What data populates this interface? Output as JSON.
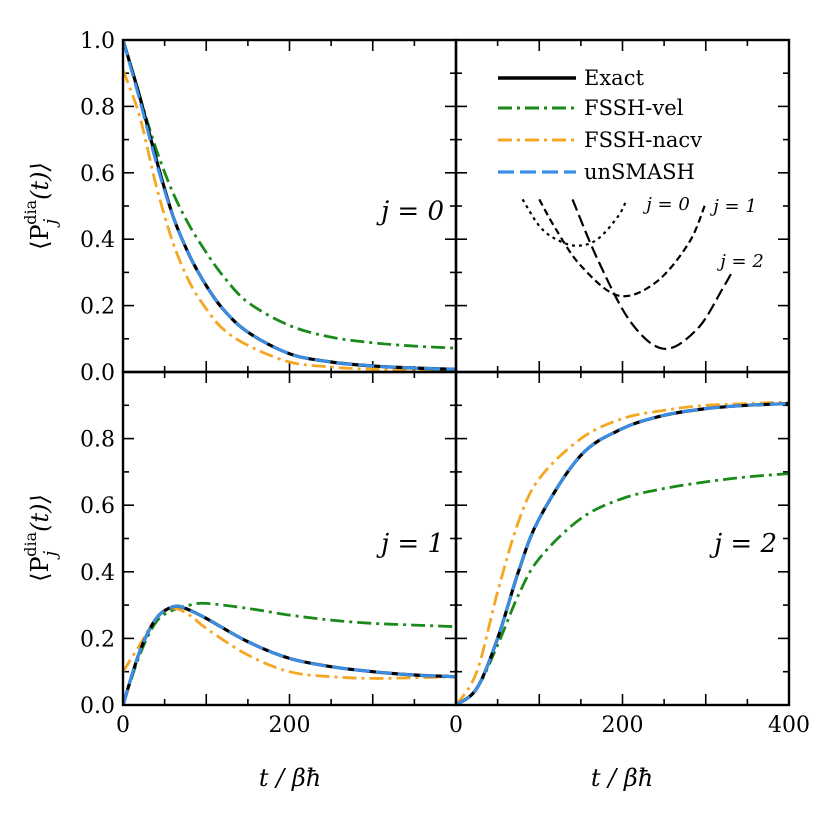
{
  "colors": {
    "exact": "#000000",
    "fssh_vel": "#1a8a1a",
    "fssh_nacv": "#f5a623",
    "unsmash": "#3a8ee6"
  },
  "labels": {
    "xlabel": "t / βħ",
    "ylabel_main": "⟨P",
    "ylabel_sub": "j",
    "ylabel_sup": "dia",
    "ylabel_tail": "(t)⟩"
  },
  "legend": [
    {
      "key": "exact",
      "label": "Exact"
    },
    {
      "key": "fssh_vel",
      "label": "FSSH-vel"
    },
    {
      "key": "fssh_nacv",
      "label": "FSSH-nacv"
    },
    {
      "key": "unsmash",
      "label": "unSMASH"
    }
  ],
  "inset_labels": [
    "j = 0",
    "j = 1",
    "j = 2"
  ],
  "chart_data": [
    {
      "type": "line",
      "panel": "top-left",
      "label": "j = 0",
      "xlim": [
        0,
        400
      ],
      "ylim": [
        0,
        1
      ],
      "xticks": [],
      "yticks": [
        "0.0",
        "0.2",
        "0.4",
        "0.6",
        "0.8",
        "1.0"
      ],
      "series": [
        {
          "name": "Exact",
          "x": [
            0,
            20,
            40,
            60,
            80,
            100,
            120,
            150,
            200,
            250,
            300,
            350,
            400
          ],
          "y": [
            1.0,
            0.83,
            0.64,
            0.47,
            0.35,
            0.26,
            0.19,
            0.12,
            0.055,
            0.03,
            0.018,
            0.012,
            0.008
          ]
        },
        {
          "name": "FSSH-vel",
          "x": [
            0,
            20,
            40,
            60,
            80,
            100,
            120,
            150,
            200,
            250,
            300,
            350,
            400
          ],
          "y": [
            1.0,
            0.83,
            0.67,
            0.54,
            0.44,
            0.36,
            0.29,
            0.21,
            0.14,
            0.105,
            0.088,
            0.078,
            0.072
          ]
        },
        {
          "name": "FSSH-nacv",
          "x": [
            0,
            20,
            40,
            60,
            80,
            100,
            120,
            150,
            200,
            250,
            300,
            350,
            400
          ],
          "y": [
            0.91,
            0.77,
            0.56,
            0.39,
            0.27,
            0.19,
            0.13,
            0.08,
            0.03,
            0.015,
            0.008,
            0.005,
            0.004
          ]
        },
        {
          "name": "unSMASH",
          "x": [
            0,
            20,
            40,
            60,
            80,
            100,
            120,
            150,
            200,
            250,
            300,
            350,
            400
          ],
          "y": [
            1.0,
            0.82,
            0.63,
            0.47,
            0.35,
            0.26,
            0.19,
            0.12,
            0.055,
            0.03,
            0.018,
            0.012,
            0.008
          ]
        }
      ]
    },
    {
      "type": "line",
      "panel": "top-right",
      "label": "",
      "xlim": [
        0,
        400
      ],
      "ylim": [
        0,
        1
      ],
      "inset": {
        "curves": [
          {
            "name": "j = 0",
            "x": [
              80,
              100,
              120,
              145,
              170,
              195,
              205
            ],
            "y": [
              0.52,
              0.44,
              0.4,
              0.38,
              0.4,
              0.47,
              0.52
            ]
          },
          {
            "name": "j = 1",
            "x": [
              100,
              120,
              150,
              195,
              240,
              280,
              300
            ],
            "y": [
              0.52,
              0.43,
              0.32,
              0.23,
              0.27,
              0.39,
              0.51
            ]
          },
          {
            "name": "j = 2",
            "x": [
              140,
              170,
              210,
              250,
              290,
              320,
              340
            ],
            "y": [
              0.52,
              0.34,
              0.15,
              0.07,
              0.13,
              0.25,
              0.34
            ]
          }
        ]
      }
    },
    {
      "type": "line",
      "panel": "bottom-left",
      "label": "j = 1",
      "xlim": [
        0,
        400
      ],
      "ylim": [
        0,
        1
      ],
      "xticks": [
        "0",
        "200"
      ],
      "yticks": [
        "0.0",
        "0.2",
        "0.4",
        "0.6",
        "0.8"
      ],
      "series": [
        {
          "name": "Exact",
          "x": [
            0,
            20,
            40,
            60,
            75,
            100,
            150,
            200,
            250,
            300,
            350,
            400
          ],
          "y": [
            0.0,
            0.16,
            0.26,
            0.295,
            0.29,
            0.26,
            0.19,
            0.14,
            0.115,
            0.1,
            0.09,
            0.085
          ]
        },
        {
          "name": "FSSH-vel",
          "x": [
            0,
            20,
            40,
            60,
            80,
            100,
            150,
            200,
            250,
            300,
            350,
            400
          ],
          "y": [
            0.0,
            0.15,
            0.25,
            0.285,
            0.3,
            0.305,
            0.29,
            0.27,
            0.255,
            0.245,
            0.24,
            0.235
          ]
        },
        {
          "name": "FSSH-nacv",
          "x": [
            0,
            20,
            40,
            60,
            80,
            100,
            150,
            200,
            250,
            300,
            350,
            400
          ],
          "y": [
            0.1,
            0.18,
            0.26,
            0.29,
            0.27,
            0.23,
            0.15,
            0.1,
            0.085,
            0.08,
            0.082,
            0.085
          ]
        },
        {
          "name": "unSMASH",
          "x": [
            0,
            20,
            40,
            60,
            75,
            100,
            150,
            200,
            250,
            300,
            350,
            400
          ],
          "y": [
            0.0,
            0.16,
            0.26,
            0.295,
            0.29,
            0.26,
            0.19,
            0.14,
            0.115,
            0.1,
            0.09,
            0.085
          ]
        }
      ]
    },
    {
      "type": "line",
      "panel": "bottom-right",
      "label": "j = 2",
      "xlim": [
        0,
        400
      ],
      "ylim": [
        0,
        1
      ],
      "xticks": [
        "0",
        "200",
        "400"
      ],
      "yticks": [],
      "series": [
        {
          "name": "Exact",
          "x": [
            0,
            25,
            50,
            75,
            100,
            150,
            200,
            250,
            300,
            350,
            400
          ],
          "y": [
            0.0,
            0.05,
            0.2,
            0.4,
            0.56,
            0.75,
            0.83,
            0.87,
            0.89,
            0.9,
            0.905
          ]
        },
        {
          "name": "FSSH-vel",
          "x": [
            0,
            25,
            50,
            75,
            100,
            150,
            200,
            250,
            300,
            350,
            400
          ],
          "y": [
            0.0,
            0.05,
            0.18,
            0.33,
            0.44,
            0.56,
            0.62,
            0.65,
            0.67,
            0.685,
            0.695
          ]
        },
        {
          "name": "FSSH-nacv",
          "x": [
            0,
            25,
            50,
            75,
            100,
            150,
            200,
            250,
            300,
            350,
            400
          ],
          "y": [
            0.0,
            0.1,
            0.34,
            0.55,
            0.68,
            0.8,
            0.86,
            0.885,
            0.9,
            0.905,
            0.91
          ]
        },
        {
          "name": "unSMASH",
          "x": [
            0,
            25,
            50,
            75,
            100,
            150,
            200,
            250,
            300,
            350,
            400
          ],
          "y": [
            0.0,
            0.05,
            0.2,
            0.4,
            0.56,
            0.75,
            0.83,
            0.87,
            0.89,
            0.9,
            0.905
          ]
        }
      ]
    }
  ]
}
